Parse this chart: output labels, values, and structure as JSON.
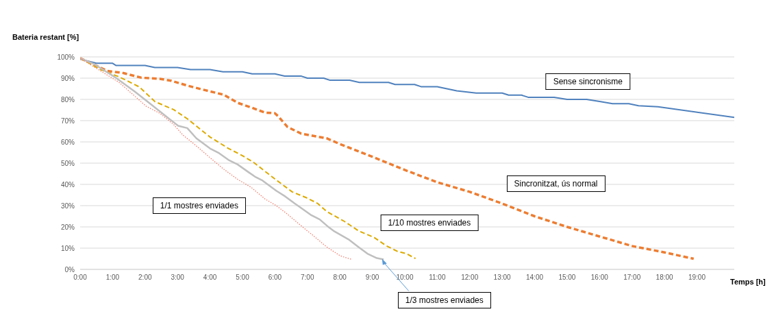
{
  "chart_data": {
    "type": "line",
    "xlabel": "Temps [h]",
    "ylabel": "Bateria restant [%]",
    "xlim": [
      0,
      20.15
    ],
    "ylim": [
      0,
      100
    ],
    "xticks": [
      {
        "value": 0,
        "label": "0:00"
      },
      {
        "value": 1,
        "label": "1:00"
      },
      {
        "value": 2,
        "label": "2:00"
      },
      {
        "value": 3,
        "label": "3:00"
      },
      {
        "value": 4,
        "label": "4:00"
      },
      {
        "value": 5,
        "label": "5:00"
      },
      {
        "value": 6,
        "label": "6:00"
      },
      {
        "value": 7,
        "label": "7:00"
      },
      {
        "value": 8,
        "label": "8:00"
      },
      {
        "value": 9,
        "label": "9:00"
      },
      {
        "value": 10,
        "label": "10:00"
      },
      {
        "value": 11,
        "label": "11:00"
      },
      {
        "value": 12,
        "label": "12:00"
      },
      {
        "value": 13,
        "label": "13:00"
      },
      {
        "value": 14,
        "label": "14:00"
      },
      {
        "value": 15,
        "label": "15:00"
      },
      {
        "value": 16,
        "label": "16:00"
      },
      {
        "value": 17,
        "label": "17:00"
      },
      {
        "value": 18,
        "label": "18:00"
      },
      {
        "value": 19,
        "label": "19:00"
      }
    ],
    "yticks": [
      {
        "value": 0,
        "label": "0%"
      },
      {
        "value": 10,
        "label": "10%"
      },
      {
        "value": 20,
        "label": "20%"
      },
      {
        "value": 30,
        "label": "30%"
      },
      {
        "value": 40,
        "label": "40%"
      },
      {
        "value": 50,
        "label": "50%"
      },
      {
        "value": 60,
        "label": "60%"
      },
      {
        "value": 70,
        "label": "70%"
      },
      {
        "value": 80,
        "label": "80%"
      },
      {
        "value": 90,
        "label": "90%"
      },
      {
        "value": 100,
        "label": "100%"
      }
    ],
    "grid": "y",
    "marker": "none",
    "series": [
      {
        "color": "#4f81bd",
        "line_style": "solid",
        "x": [
          0,
          0.5,
          1.0,
          1.1,
          2.0,
          2.3,
          3.0,
          3.4,
          4.0,
          4.4,
          5.0,
          5.3,
          6.0,
          6.3,
          6.8,
          7.0,
          7.5,
          7.7,
          8.3,
          8.6,
          9.5,
          9.7,
          10.3,
          10.5,
          11.0,
          11.3,
          11.6,
          12.2,
          13.0,
          13.2,
          13.6,
          13.8,
          14.6,
          15.0,
          15.6,
          16.0,
          16.4,
          16.9,
          17.2,
          17.8,
          20.15
        ],
        "values": [
          99,
          97,
          97,
          96,
          96,
          95,
          95,
          94,
          94,
          93,
          93,
          92,
          92,
          91,
          91,
          90,
          90,
          89,
          89,
          88,
          88,
          87,
          87,
          86,
          86,
          85,
          84,
          83,
          83,
          82,
          82,
          81,
          81,
          80,
          80,
          79,
          78,
          78,
          77,
          76.5,
          71.5
        ]
      },
      {
        "color": "#ed7d31",
        "line_style": "dashed",
        "x": [
          0,
          0.84,
          1.33,
          1.89,
          2.45,
          2.8,
          3.3,
          3.86,
          4.42,
          4.85,
          5.27,
          5.69,
          6.0,
          6.11,
          6.39,
          6.81,
          7.59,
          8,
          9,
          10,
          11,
          12,
          13,
          14,
          15,
          16,
          17,
          18,
          18.9
        ],
        "values": [
          99.4,
          93.4,
          92.4,
          90.2,
          89.7,
          88.8,
          86.5,
          84.3,
          82.2,
          78.4,
          76.2,
          73.8,
          73.5,
          71.9,
          67,
          63.9,
          61.7,
          59,
          53,
          46.8,
          41,
          36.5,
          31,
          25,
          20,
          15.5,
          11,
          8,
          5
        ]
      },
      {
        "color": "#dcaa00",
        "line_style": "dashed",
        "x": [
          0,
          0.63,
          1.19,
          1.82,
          2.31,
          2.88,
          3.3,
          4.0,
          4.57,
          4.99,
          5.34,
          5.97,
          6.53,
          6.96,
          7.31,
          7.59,
          8.15,
          8.57,
          9.07,
          9.42,
          9.77,
          10.05,
          10.33
        ],
        "values": [
          99.4,
          94,
          90.7,
          85.9,
          78.9,
          75.2,
          70.9,
          62.3,
          56.9,
          53.6,
          50.4,
          42.9,
          36.5,
          33.8,
          31.1,
          27.3,
          22.5,
          18.2,
          14.9,
          11.2,
          8.5,
          7.4,
          5.1
        ]
      },
      {
        "color": "#bfbfbf",
        "line_style": "solid",
        "x": [
          0,
          0.42,
          1.05,
          1.68,
          2.17,
          2.74,
          3.02,
          3.3,
          3.58,
          4.0,
          4.28,
          4.57,
          4.85,
          5.2,
          5.41,
          5.62,
          6.04,
          6.32,
          6.6,
          6.81,
          7.1,
          7.38,
          7.66,
          7.8,
          8.29,
          8.57,
          8.85,
          9.14,
          9.35
        ],
        "values": [
          99.4,
          96.7,
          90.7,
          83.7,
          77.8,
          70.9,
          67.6,
          66.5,
          61.7,
          56.9,
          54.7,
          51.5,
          49.4,
          45.6,
          43.4,
          41.8,
          37,
          34.3,
          31.1,
          28.9,
          25.7,
          23.5,
          19.8,
          18.2,
          13.9,
          10.6,
          7.4,
          5.3,
          4.7
        ]
      },
      {
        "color": "#f08070",
        "line_style": "dotted",
        "x": [
          0,
          0.63,
          1.19,
          1.68,
          2.03,
          2.45,
          2.88,
          3.16,
          3.51,
          4.0,
          4.42,
          4.85,
          5.27,
          5.69,
          6.04,
          6.32,
          6.74,
          7.17,
          7.59,
          8.01,
          8.36
        ],
        "values": [
          99.4,
          93.4,
          88.1,
          81.6,
          76.8,
          73.5,
          68.2,
          63.3,
          59,
          52.6,
          47.2,
          42.4,
          38.6,
          33.2,
          30,
          26.8,
          21.4,
          16,
          10.6,
          6.4,
          4.7
        ]
      }
    ],
    "annotations": [
      {
        "text": "Sense sincronisme",
        "x": 15.6,
        "y": 80
      },
      "Sincronitzat, ús normal",
      {
        "text": "1/10 mostres enviades",
        "x": 9.07,
        "y": 14.9
      },
      {
        "text": "1/1 mostres enviades",
        "x": 4.85,
        "y": 42.4
      },
      {
        "text": "1/3 mostres enviades",
        "x": 9.3,
        "y": 5
      }
    ]
  }
}
